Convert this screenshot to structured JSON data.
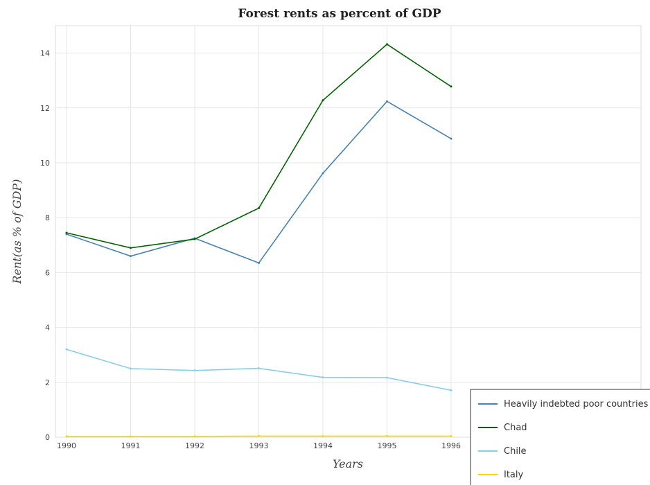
{
  "chart_data": {
    "type": "line",
    "title": "Forest rents as percent of GDP",
    "xlabel": "Years",
    "ylabel": "Rent(as % of GDP)",
    "categories": [
      "1990",
      "1991",
      "1992",
      "1993",
      "1994",
      "1995",
      "1996"
    ],
    "ylim": [
      0,
      15
    ],
    "yticks": [
      0,
      2,
      4,
      6,
      8,
      10,
      12,
      14
    ],
    "grid": true,
    "legend_position": "bottom-right",
    "series": [
      {
        "name": "Heavily indebted poor countries",
        "color": "#4682b4",
        "values": [
          7.4,
          6.6,
          7.25,
          6.35,
          9.62,
          12.24,
          10.88
        ]
      },
      {
        "name": "Chad",
        "color": "#006400",
        "values": [
          7.45,
          6.9,
          7.22,
          8.35,
          12.28,
          14.32,
          12.78
        ]
      },
      {
        "name": "Chile",
        "color": "#87ceeb",
        "values": [
          3.2,
          2.5,
          2.43,
          2.51,
          2.18,
          2.17,
          1.71
        ]
      },
      {
        "name": "Italy",
        "color": "#ffd700",
        "values": [
          0.03,
          0.03,
          0.03,
          0.04,
          0.04,
          0.04,
          0.04
        ]
      }
    ]
  }
}
